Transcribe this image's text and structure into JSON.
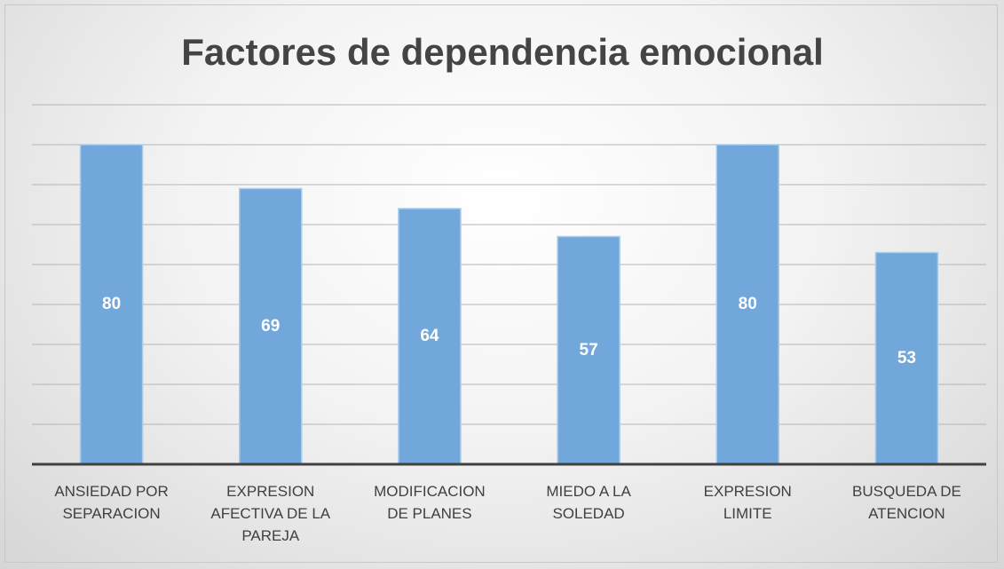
{
  "chart_data": {
    "type": "bar",
    "title": "Factores de dependencia emocional",
    "categories": [
      "ANSIEDAD POR SEPARACION",
      "EXPRESION AFECTIVA DE LA PAREJA",
      "MODIFICACION DE PLANES",
      "MIEDO A LA SOLEDAD",
      "EXPRESION LIMITE",
      "BUSQUEDA DE ATENCION"
    ],
    "values": [
      80,
      69,
      64,
      57,
      80,
      53
    ],
    "color": "#72a7db",
    "ylim": [
      0,
      90
    ],
    "yticks": [
      0,
      10,
      20,
      30,
      40,
      50,
      60,
      70,
      80,
      90
    ],
    "grid": true
  }
}
